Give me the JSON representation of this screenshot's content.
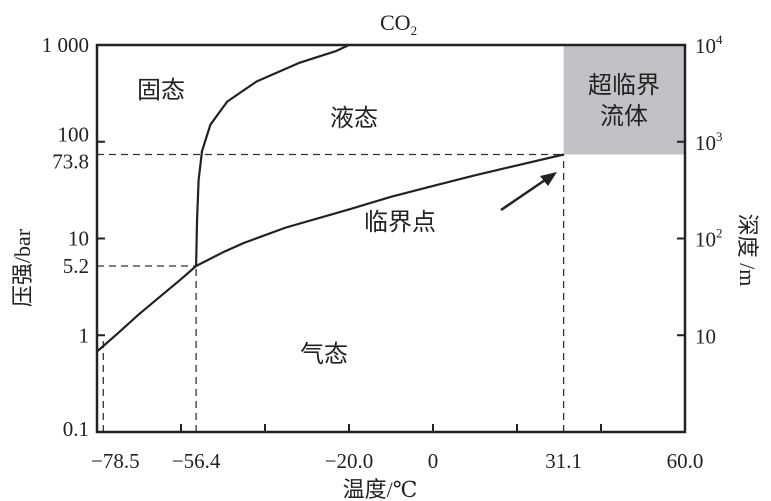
{
  "chart_data": {
    "type": "line",
    "title": "CO",
    "title_subscript": "2",
    "xlabel": "温度/℃",
    "ylabel": "压强/bar",
    "y2label": "深度 /m",
    "xlim": [
      -80,
      60
    ],
    "ylim": [
      0.1,
      1000
    ],
    "yscale": "log",
    "grid": false,
    "x_ticks": [
      -80,
      -60,
      -40,
      -20,
      0,
      20,
      40,
      60
    ],
    "x_tick_labels": [
      {
        "value": -78.5,
        "label": "−78.5"
      },
      {
        "value": -56.4,
        "label": "−56.4"
      },
      {
        "value": -20.0,
        "label": "−20.0"
      },
      {
        "value": 0,
        "label": "0"
      },
      {
        "value": 31.1,
        "label": "31.1"
      },
      {
        "value": 60.0,
        "label": "60.0"
      }
    ],
    "y_tick_labels": [
      {
        "value": 1000,
        "label": "1 000",
        "tick": false
      },
      {
        "value": 100,
        "label": "100",
        "tick": true
      },
      {
        "value": 73.8,
        "label": "73.8",
        "tick": false
      },
      {
        "value": 10,
        "label": "10",
        "tick": true
      },
      {
        "value": 5.2,
        "label": "5.2",
        "tick": false
      },
      {
        "value": 1,
        "label": "1",
        "tick": true
      },
      {
        "value": 0.1,
        "label": "0.1",
        "tick": false
      }
    ],
    "y2_tick_labels": [
      {
        "pressure": 1000,
        "base": "10",
        "exp": "4"
      },
      {
        "pressure": 100,
        "base": "10",
        "exp": "3"
      },
      {
        "pressure": 10,
        "base": "10",
        "exp": "2"
      },
      {
        "pressure": 1,
        "base": "10",
        "exp": ""
      }
    ],
    "series": [
      {
        "name": "sublimation-curve",
        "points": [
          [
            -80,
            0.68
          ],
          [
            -75,
            1.05
          ],
          [
            -70,
            1.65
          ],
          [
            -65,
            2.5
          ],
          [
            -60,
            3.8
          ],
          [
            -56.4,
            5.2
          ]
        ]
      },
      {
        "name": "vaporization-curve",
        "points": [
          [
            -56.4,
            5.2
          ],
          [
            -50,
            7.2
          ],
          [
            -45,
            9
          ],
          [
            -35,
            13
          ],
          [
            -20,
            20
          ],
          [
            -10,
            27
          ],
          [
            0,
            35
          ],
          [
            10,
            45
          ],
          [
            20,
            57
          ],
          [
            31.1,
            73.8
          ]
        ]
      },
      {
        "name": "melting-curve",
        "points": [
          [
            -56.4,
            5.2
          ],
          [
            -56.2,
            15
          ],
          [
            -55.8,
            40
          ],
          [
            -55,
            80
          ],
          [
            -53,
            150
          ],
          [
            -49,
            260
          ],
          [
            -42,
            420
          ],
          [
            -32,
            650
          ],
          [
            -23,
            870
          ],
          [
            -20,
            1000
          ]
        ]
      }
    ],
    "reference_lines": [
      {
        "name": "critical-pressure",
        "axis": "y",
        "value": 73.8,
        "to_x": 31.1
      },
      {
        "name": "triple-pressure",
        "axis": "y",
        "value": 5.2,
        "to_x": -56.4
      },
      {
        "name": "critical-temperature",
        "axis": "x",
        "value": 31.1,
        "to_y": 73.8
      },
      {
        "name": "triple-temperature",
        "axis": "x",
        "value": -56.4,
        "to_y": 5.2
      },
      {
        "name": "sublimation-temperature",
        "axis": "x",
        "value": -78.5,
        "to_y": 0.9
      }
    ],
    "supercritical_region": {
      "x": [
        31.1,
        60
      ],
      "y": [
        73.8,
        1000
      ],
      "color": "#c2c2c6"
    },
    "region_labels": {
      "solid": "固态",
      "liquid": "液态",
      "gas": "气态",
      "supercritical_line1": "超临界",
      "supercritical_line2": "流体",
      "critical_point": "临界点"
    }
  }
}
